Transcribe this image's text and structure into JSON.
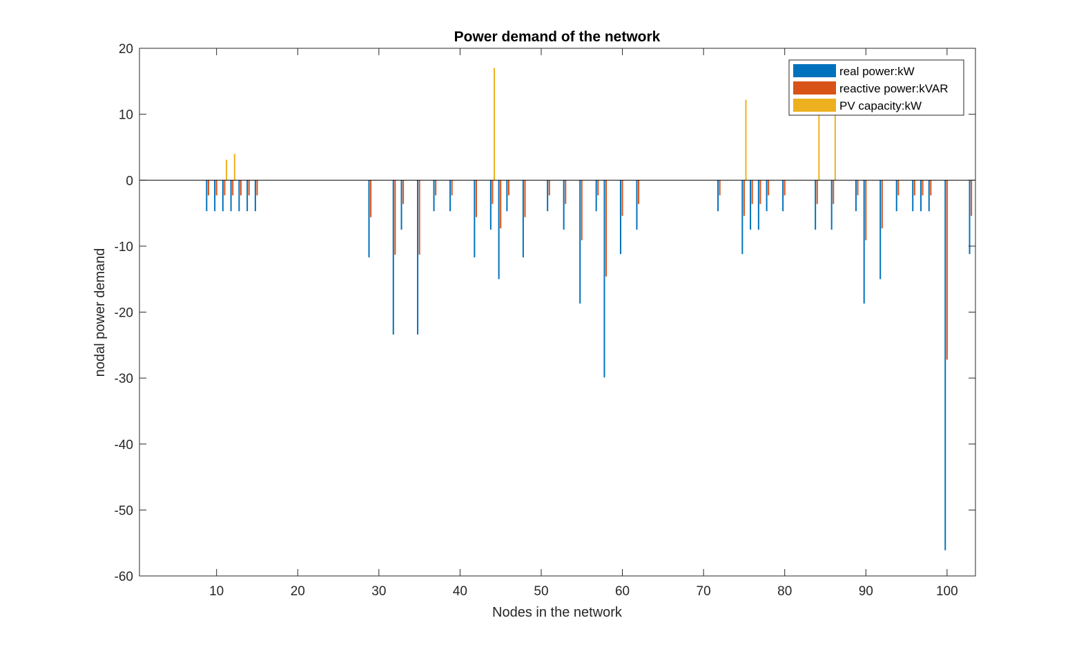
{
  "chart_data": {
    "type": "bar",
    "title": "Power demand of the network",
    "xlabel": "Nodes in the network",
    "ylabel": "nodal power demand",
    "xlim": [
      0.5,
      103.5
    ],
    "ylim": [
      -60,
      20
    ],
    "xticks": [
      10,
      20,
      30,
      40,
      50,
      60,
      70,
      80,
      90,
      100
    ],
    "yticks": [
      -60,
      -50,
      -40,
      -30,
      -20,
      -10,
      0,
      10,
      20
    ],
    "grid": false,
    "legend_position": "top-right",
    "series": [
      {
        "name": "real power:kW",
        "color": "#0072BD",
        "points": [
          [
            9,
            -4.7
          ],
          [
            10,
            -4.7
          ],
          [
            11,
            -4.7
          ],
          [
            12,
            -4.7
          ],
          [
            13,
            -4.7
          ],
          [
            14,
            -4.7
          ],
          [
            15,
            -4.7
          ],
          [
            29,
            -11.7
          ],
          [
            32,
            -23.4
          ],
          [
            33,
            -7.5
          ],
          [
            35,
            -23.4
          ],
          [
            37,
            -4.7
          ],
          [
            39,
            -4.7
          ],
          [
            42,
            -11.7
          ],
          [
            44,
            -7.5
          ],
          [
            45,
            -15.0
          ],
          [
            46,
            -4.7
          ],
          [
            48,
            -11.7
          ],
          [
            51,
            -4.7
          ],
          [
            53,
            -7.5
          ],
          [
            55,
            -18.7
          ],
          [
            57,
            -4.7
          ],
          [
            58,
            -29.9
          ],
          [
            60,
            -11.2
          ],
          [
            62,
            -7.5
          ],
          [
            72,
            -4.7
          ],
          [
            75,
            -11.2
          ],
          [
            76,
            -7.5
          ],
          [
            77,
            -7.5
          ],
          [
            78,
            -4.7
          ],
          [
            80,
            -4.7
          ],
          [
            84,
            -7.5
          ],
          [
            86,
            -7.5
          ],
          [
            89,
            -4.7
          ],
          [
            90,
            -18.7
          ],
          [
            92,
            -15.0
          ],
          [
            94,
            -4.7
          ],
          [
            96,
            -4.7
          ],
          [
            97,
            -4.7
          ],
          [
            98,
            -4.7
          ],
          [
            100,
            -56.1
          ],
          [
            103,
            -11.2
          ]
        ]
      },
      {
        "name": "reactive power:kVAR",
        "color": "#D95319",
        "points": [
          [
            9,
            -2.3
          ],
          [
            10,
            -2.3
          ],
          [
            11,
            -2.3
          ],
          [
            12,
            -2.3
          ],
          [
            13,
            -2.3
          ],
          [
            14,
            -2.3
          ],
          [
            15,
            -2.3
          ],
          [
            29,
            -5.6
          ],
          [
            32,
            -11.3
          ],
          [
            33,
            -3.6
          ],
          [
            35,
            -11.3
          ],
          [
            37,
            -2.3
          ],
          [
            39,
            -2.3
          ],
          [
            42,
            -5.6
          ],
          [
            44,
            -3.6
          ],
          [
            45,
            -7.3
          ],
          [
            46,
            -2.3
          ],
          [
            48,
            -5.6
          ],
          [
            51,
            -2.3
          ],
          [
            53,
            -3.6
          ],
          [
            55,
            -9.1
          ],
          [
            57,
            -2.3
          ],
          [
            58,
            -14.6
          ],
          [
            60,
            -5.4
          ],
          [
            62,
            -3.6
          ],
          [
            72,
            -2.3
          ],
          [
            75,
            -5.4
          ],
          [
            76,
            -3.6
          ],
          [
            77,
            -3.6
          ],
          [
            78,
            -2.3
          ],
          [
            80,
            -2.3
          ],
          [
            84,
            -3.6
          ],
          [
            86,
            -3.6
          ],
          [
            89,
            -2.3
          ],
          [
            90,
            -9.1
          ],
          [
            92,
            -7.3
          ],
          [
            94,
            -2.3
          ],
          [
            96,
            -2.3
          ],
          [
            97,
            -2.3
          ],
          [
            98,
            -2.3
          ],
          [
            100,
            -27.2
          ],
          [
            103,
            -5.4
          ]
        ]
      },
      {
        "name": "PV capacity:kW",
        "color": "#EDB120",
        "points": [
          [
            11,
            3.1
          ],
          [
            12,
            4.0
          ],
          [
            44,
            17.0
          ],
          [
            75,
            12.2
          ],
          [
            84,
            11.0
          ],
          [
            86,
            11.0
          ]
        ]
      }
    ]
  }
}
